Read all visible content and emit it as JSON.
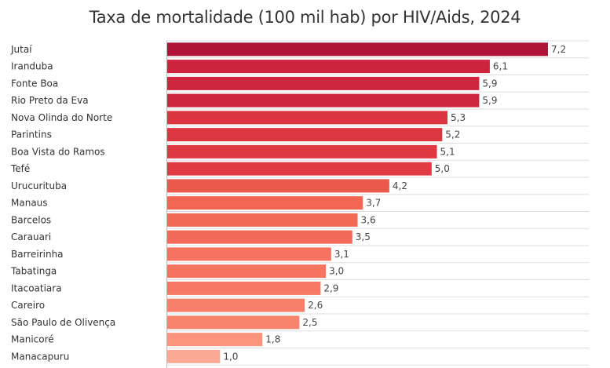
{
  "chart_data": {
    "type": "bar",
    "orientation": "horizontal",
    "title": "Taxa de mortalidade (100 mil hab) por HIV/Aids, 2024",
    "xlabel": "",
    "ylabel": "",
    "xlim": [
      0,
      7.2
    ],
    "grid": "horizontal row separators",
    "categories": [
      "Jutaí",
      "Iranduba",
      "Fonte Boa",
      "Rio Preto da Eva",
      "Nova Olinda do Norte",
      "Parintins",
      "Boa Vista do Ramos",
      "Tefé",
      "Urucurituba",
      "Manaus",
      "Barcelos",
      "Carauari",
      "Barreirinha",
      "Tabatinga",
      "Itacoatiara",
      "Careiro",
      "São Paulo de Olivença",
      "Manicoré",
      "Manacapuru"
    ],
    "values": [
      7.2,
      6.1,
      5.9,
      5.9,
      5.3,
      5.2,
      5.1,
      5.0,
      4.2,
      3.7,
      3.6,
      3.5,
      3.1,
      3.0,
      2.9,
      2.6,
      2.5,
      1.8,
      1.0
    ],
    "labels": [
      "7,2",
      "6,1",
      "5,9",
      "5,9",
      "5,3",
      "5,2",
      "5,1",
      "5,0",
      "4,2",
      "3,7",
      "3,6",
      "3,5",
      "3,1",
      "3,0",
      "2,9",
      "2,6",
      "2,5",
      "1,8",
      "1,0"
    ],
    "colors": [
      "#b01338",
      "#cd233d",
      "#cf253e",
      "#cf253e",
      "#dc3440",
      "#dd3641",
      "#df3842",
      "#e03a43",
      "#ec5a4e",
      "#f26754",
      "#f26956",
      "#f36b58",
      "#f6735f",
      "#f67560",
      "#f77862",
      "#f8806a",
      "#f8836c",
      "#fa947c",
      "#fbaa96"
    ]
  }
}
